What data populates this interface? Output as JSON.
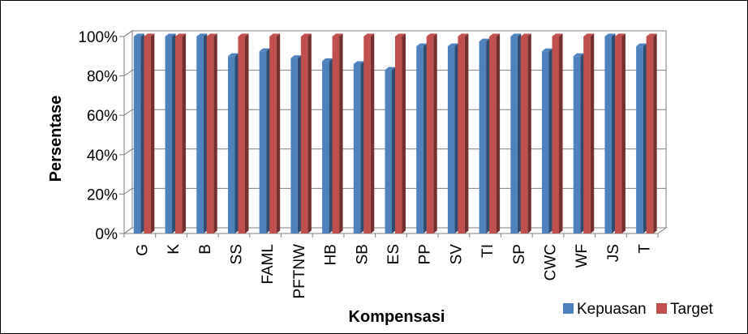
{
  "chart_data": {
    "type": "bar",
    "title": "",
    "xlabel": "Kompensasi",
    "ylabel": "Persentase",
    "categories": [
      "G",
      "K",
      "B",
      "SS",
      "FAML",
      "PFTNW",
      "HB",
      "SB",
      "ES",
      "PP",
      "SV",
      "TI",
      "SP",
      "CWC",
      "WF",
      "JS",
      "T"
    ],
    "series": [
      {
        "name": "Kepuasan",
        "color": "#4f81bd",
        "values": [
          100,
          100,
          100,
          90,
          92.5,
          89,
          87.5,
          86,
          83,
          95,
          95,
          97.5,
          100,
          92.5,
          90,
          100,
          95
        ]
      },
      {
        "name": "Target",
        "color": "#c0504d",
        "values": [
          100,
          100,
          100,
          100,
          100,
          100,
          100,
          100,
          100,
          100,
          100,
          100,
          100,
          100,
          100,
          100,
          100
        ]
      }
    ],
    "yticks": [
      "0%",
      "20%",
      "40%",
      "60%",
      "80%",
      "100%"
    ],
    "ylim": [
      0,
      100
    ],
    "grid": true,
    "style": "3d-clustered-column",
    "legend": "bottom-right"
  }
}
